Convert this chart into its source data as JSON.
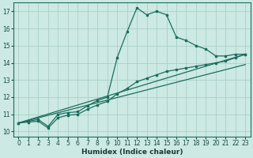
{
  "xlabel": "Humidex (Indice chaleur)",
  "xlim": [
    -0.5,
    23.5
  ],
  "ylim": [
    9.7,
    17.5
  ],
  "bg_color": "#cce9e3",
  "line_color": "#1a6e5e",
  "grid_color": "#aacfc8",
  "lines": [
    {
      "x": [
        0,
        1,
        2,
        3,
        4,
        5,
        6,
        7,
        8,
        9,
        10,
        11,
        12,
        13,
        14,
        15,
        16,
        17,
        18,
        19,
        20,
        21,
        22,
        23
      ],
      "y": [
        10.5,
        10.6,
        10.7,
        10.3,
        11.0,
        11.1,
        11.15,
        11.5,
        11.8,
        12.0,
        14.3,
        15.8,
        17.2,
        16.8,
        17.0,
        16.8,
        15.5,
        15.3,
        15.0,
        14.8,
        14.4,
        14.4,
        14.5,
        14.5
      ],
      "markers": true,
      "straight": false
    },
    {
      "x": [
        0,
        1,
        2,
        3,
        4,
        5,
        6,
        7,
        8,
        9,
        10,
        11,
        12,
        13,
        14,
        15,
        16,
        17,
        18,
        19,
        20,
        21,
        22,
        23
      ],
      "y": [
        10.5,
        10.55,
        10.6,
        10.2,
        10.8,
        10.95,
        11.0,
        11.3,
        11.55,
        11.75,
        12.2,
        12.5,
        12.9,
        13.1,
        13.3,
        13.5,
        13.6,
        13.7,
        13.8,
        13.9,
        14.0,
        14.1,
        14.3,
        14.5
      ],
      "markers": true,
      "straight": false
    },
    {
      "x": [
        0,
        23
      ],
      "y": [
        10.5,
        14.5
      ],
      "markers": false,
      "straight": true
    },
    {
      "x": [
        0,
        23
      ],
      "y": [
        10.5,
        13.9
      ],
      "markers": false,
      "straight": true
    }
  ],
  "xticks": [
    0,
    1,
    2,
    3,
    4,
    5,
    6,
    7,
    8,
    9,
    10,
    11,
    12,
    13,
    14,
    15,
    16,
    17,
    18,
    19,
    20,
    21,
    22,
    23
  ],
  "yticks": [
    10,
    11,
    12,
    13,
    14,
    15,
    16,
    17
  ],
  "tick_fontsize": 5.5,
  "label_fontsize": 6.5
}
